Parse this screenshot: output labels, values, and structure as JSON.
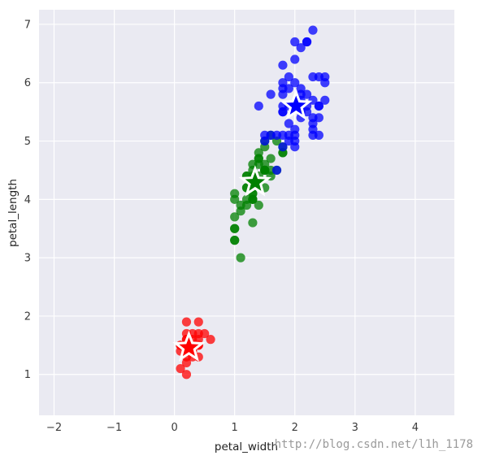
{
  "chart_data": {
    "type": "scatter",
    "xlabel": "petal_width",
    "ylabel": "petal_length",
    "xlim": [
      -2.25,
      4.65
    ],
    "ylim": [
      0.3,
      7.25
    ],
    "xticks": [
      -2,
      -1,
      0,
      1,
      2,
      3,
      4
    ],
    "yticks": [
      1,
      2,
      3,
      4,
      5,
      6,
      7
    ],
    "grid": true,
    "legend": "none",
    "colors": {
      "background": "#EAEAF2",
      "grid": "#FFFFFF",
      "cluster_red": "#FF0000",
      "cluster_green": "#008000",
      "cluster_blue": "#0000FF"
    },
    "series": [
      {
        "color": "#FF0000",
        "marker": "circle",
        "points": [
          [
            0.2,
            1.4
          ],
          [
            0.2,
            1.3
          ],
          [
            0.2,
            1.5
          ],
          [
            0.4,
            1.7
          ],
          [
            0.3,
            1.4
          ],
          [
            0.1,
            1.5
          ],
          [
            0.2,
            1.6
          ],
          [
            0.1,
            1.4
          ],
          [
            0.1,
            1.1
          ],
          [
            0.2,
            1.2
          ],
          [
            0.4,
            1.5
          ],
          [
            0.4,
            1.3
          ],
          [
            0.3,
            1.7
          ],
          [
            0.3,
            1.5
          ],
          [
            0.2,
            1.7
          ],
          [
            0.2,
            1.0
          ],
          [
            0.5,
            1.7
          ],
          [
            0.2,
            1.9
          ],
          [
            0.4,
            1.6
          ],
          [
            0.6,
            1.6
          ],
          [
            0.4,
            1.9
          ],
          [
            0.3,
            1.3
          ],
          [
            0.3,
            1.4
          ],
          [
            0.2,
            1.6
          ],
          [
            0.4,
            1.5
          ],
          [
            0.1,
            1.5
          ],
          [
            0.3,
            1.6
          ]
        ]
      },
      {
        "color": "#008000",
        "marker": "circle",
        "points": [
          [
            1.4,
            4.7
          ],
          [
            1.5,
            4.5
          ],
          [
            1.5,
            4.9
          ],
          [
            1.3,
            4.0
          ],
          [
            1.5,
            4.6
          ],
          [
            1.3,
            4.5
          ],
          [
            1.6,
            4.7
          ],
          [
            1.0,
            3.3
          ],
          [
            1.3,
            4.6
          ],
          [
            1.4,
            3.9
          ],
          [
            1.0,
            3.5
          ],
          [
            1.5,
            4.2
          ],
          [
            1.0,
            4.0
          ],
          [
            1.4,
            4.7
          ],
          [
            1.3,
            3.6
          ],
          [
            1.4,
            4.4
          ],
          [
            1.5,
            4.5
          ],
          [
            1.0,
            4.1
          ],
          [
            1.5,
            4.5
          ],
          [
            1.1,
            3.9
          ],
          [
            1.8,
            4.8
          ],
          [
            1.3,
            4.0
          ],
          [
            1.2,
            4.4
          ],
          [
            1.4,
            4.8
          ],
          [
            1.7,
            5.0
          ],
          [
            1.5,
            4.5
          ],
          [
            1.0,
            3.5
          ],
          [
            1.1,
            3.8
          ],
          [
            1.0,
            3.7
          ],
          [
            1.2,
            3.9
          ],
          [
            1.6,
            5.1
          ],
          [
            1.5,
            4.5
          ],
          [
            1.6,
            4.5
          ],
          [
            1.3,
            4.4
          ],
          [
            1.3,
            4.1
          ],
          [
            1.3,
            4.0
          ],
          [
            1.2,
            4.4
          ],
          [
            1.4,
            4.6
          ],
          [
            1.2,
            4.0
          ],
          [
            1.0,
            3.3
          ],
          [
            1.3,
            4.2
          ],
          [
            1.2,
            4.2
          ],
          [
            1.3,
            4.3
          ],
          [
            1.1,
            3.0
          ],
          [
            1.3,
            4.1
          ],
          [
            1.8,
            4.9
          ],
          [
            1.8,
            4.8
          ],
          [
            1.5,
            5.0
          ],
          [
            1.2,
            4.2
          ],
          [
            1.7,
            4.5
          ],
          [
            1.4,
            4.3
          ],
          [
            1.6,
            4.4
          ]
        ]
      },
      {
        "color": "#0000FF",
        "marker": "circle",
        "points": [
          [
            2.5,
            6.0
          ],
          [
            1.9,
            5.1
          ],
          [
            2.1,
            5.9
          ],
          [
            1.8,
            5.6
          ],
          [
            2.2,
            5.8
          ],
          [
            2.1,
            6.6
          ],
          [
            1.7,
            4.5
          ],
          [
            1.8,
            6.3
          ],
          [
            1.8,
            5.8
          ],
          [
            2.5,
            6.1
          ],
          [
            2.0,
            5.1
          ],
          [
            1.9,
            5.3
          ],
          [
            2.1,
            5.5
          ],
          [
            2.0,
            5.0
          ],
          [
            2.4,
            5.1
          ],
          [
            2.3,
            5.3
          ],
          [
            1.8,
            5.5
          ],
          [
            2.2,
            6.7
          ],
          [
            2.3,
            6.9
          ],
          [
            1.5,
            5.0
          ],
          [
            2.3,
            5.7
          ],
          [
            2.0,
            4.9
          ],
          [
            2.0,
            6.7
          ],
          [
            1.8,
            4.9
          ],
          [
            2.1,
            5.7
          ],
          [
            1.8,
            6.0
          ],
          [
            2.1,
            5.8
          ],
          [
            1.6,
            5.8
          ],
          [
            1.9,
            6.1
          ],
          [
            2.0,
            6.4
          ],
          [
            2.2,
            5.6
          ],
          [
            1.5,
            5.1
          ],
          [
            1.4,
            5.6
          ],
          [
            2.3,
            6.1
          ],
          [
            2.4,
            5.6
          ],
          [
            1.8,
            5.5
          ],
          [
            2.1,
            5.4
          ],
          [
            2.4,
            5.6
          ],
          [
            2.3,
            5.1
          ],
          [
            1.9,
            5.9
          ],
          [
            2.5,
            5.7
          ],
          [
            2.3,
            5.2
          ],
          [
            1.9,
            5.0
          ],
          [
            2.0,
            5.2
          ],
          [
            2.3,
            5.4
          ],
          [
            1.8,
            5.1
          ],
          [
            2.4,
            6.1
          ],
          [
            1.6,
            5.1
          ],
          [
            1.7,
            5.1
          ],
          [
            2.2,
            6.7
          ],
          [
            1.8,
            5.9
          ],
          [
            2.0,
            6.0
          ],
          [
            2.4,
            5.4
          ],
          [
            1.9,
            5.6
          ],
          [
            2.2,
            5.5
          ]
        ]
      }
    ],
    "centroids": [
      {
        "color": "#FF0000",
        "marker": "star",
        "x": 0.24,
        "y": 1.46
      },
      {
        "color": "#008000",
        "marker": "star",
        "x": 1.34,
        "y": 4.29
      },
      {
        "color": "#0000FF",
        "marker": "star",
        "x": 2.02,
        "y": 5.6
      }
    ]
  },
  "watermark": "http://blog.csdn.net/l1h_1178"
}
